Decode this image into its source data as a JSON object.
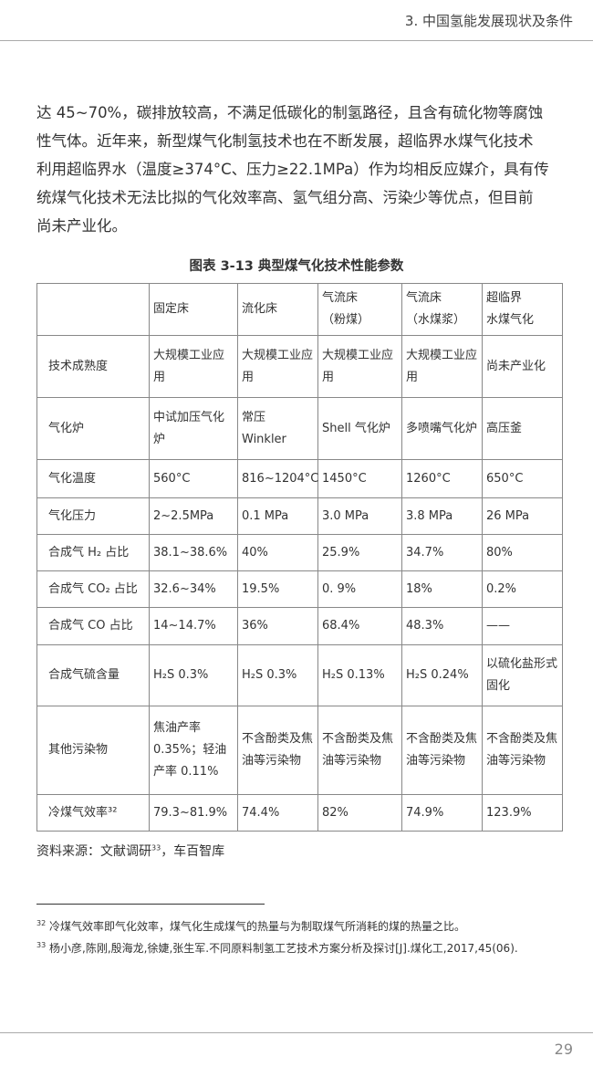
{
  "header": {
    "title": "3. 中国氢能发展现状及条件"
  },
  "paragraph": {
    "lines": [
      "达 45~70%，碳排放较高，不满足低碳化的制氢路径，且含有硫化物等腐蚀",
      "性气体。近年来，新型煤气化制氢技术也在不断发展，超临界水煤气化技术",
      "利用超临界水（温度≥374°C、压力≥22.1MPa）作为均相反应媒介，具有传",
      "统煤气化技术无法比拟的气化效率高、氢气组分高、污染少等优点，但目前",
      "尚未产业化。"
    ]
  },
  "table": {
    "caption": "图表 3-13  典型煤气化技术性能参数",
    "header": [
      "",
      "固定床",
      "流化床",
      "气流床\n（粉煤）",
      "气流床\n（水煤浆）",
      "超临界\n水煤气化"
    ],
    "rows": [
      [
        "技术成熟度",
        "大规模工业应用",
        "大规模工业应用",
        "大规模工业应用",
        "大规模工业应用",
        "尚未产业化"
      ],
      [
        "气化炉",
        "中试加压气化炉",
        "常压 Winkler",
        "Shell 气化炉",
        "多喷嘴气化炉",
        "高压釜"
      ],
      [
        "气化温度",
        "560°C",
        "816~1204°C",
        "1450°C",
        "1260°C",
        "650°C"
      ],
      [
        "气化压力",
        "2~2.5MPa",
        "0.1 MPa",
        "3.0 MPa",
        "3.8 MPa",
        "26 MPa"
      ],
      [
        "合成气 H₂ 占比",
        "38.1~38.6%",
        "40%",
        "25.9%",
        "34.7%",
        "80%"
      ],
      [
        "合成气 CO₂ 占比",
        "32.6~34%",
        "19.5%",
        "0. 9%",
        "18%",
        "0.2%"
      ],
      [
        "合成气 CO 占比",
        "14~14.7%",
        "36%",
        "68.4%",
        "48.3%",
        "——"
      ],
      [
        "合成气硫含量",
        "H₂S 0.3%",
        "H₂S 0.3%",
        "H₂S 0.13%",
        "H₂S 0.24%",
        "以硫化盐形式固化"
      ],
      [
        "其他污染物",
        "焦油产率 0.35%；轻油产率 0.11%",
        "不含酚类及焦油等污染物",
        "不含酚类及焦油等污染物",
        "不含酚类及焦油等污染物",
        "不含酚类及焦油等污染物"
      ],
      [
        "冷煤气效率³²",
        "79.3~81.9%",
        "74.4%",
        "82%",
        "74.9%",
        "123.9%"
      ]
    ]
  },
  "source": {
    "prefix": "资料来源：文献调研",
    "mark": "33",
    "suffix": "，车百智库"
  },
  "footnotes": [
    {
      "mark": "32",
      "text": "冷煤气效率即气化效率，煤气化生成煤气的热量与为制取煤气所消耗的煤的热量之比。"
    },
    {
      "mark": "33",
      "text": "杨小彦,陈刚,殷海龙,徐婕,张生军.不同原料制氢工艺技术方案分析及探讨[J].煤化工,2017,45(06)."
    }
  ],
  "page_number": "29"
}
